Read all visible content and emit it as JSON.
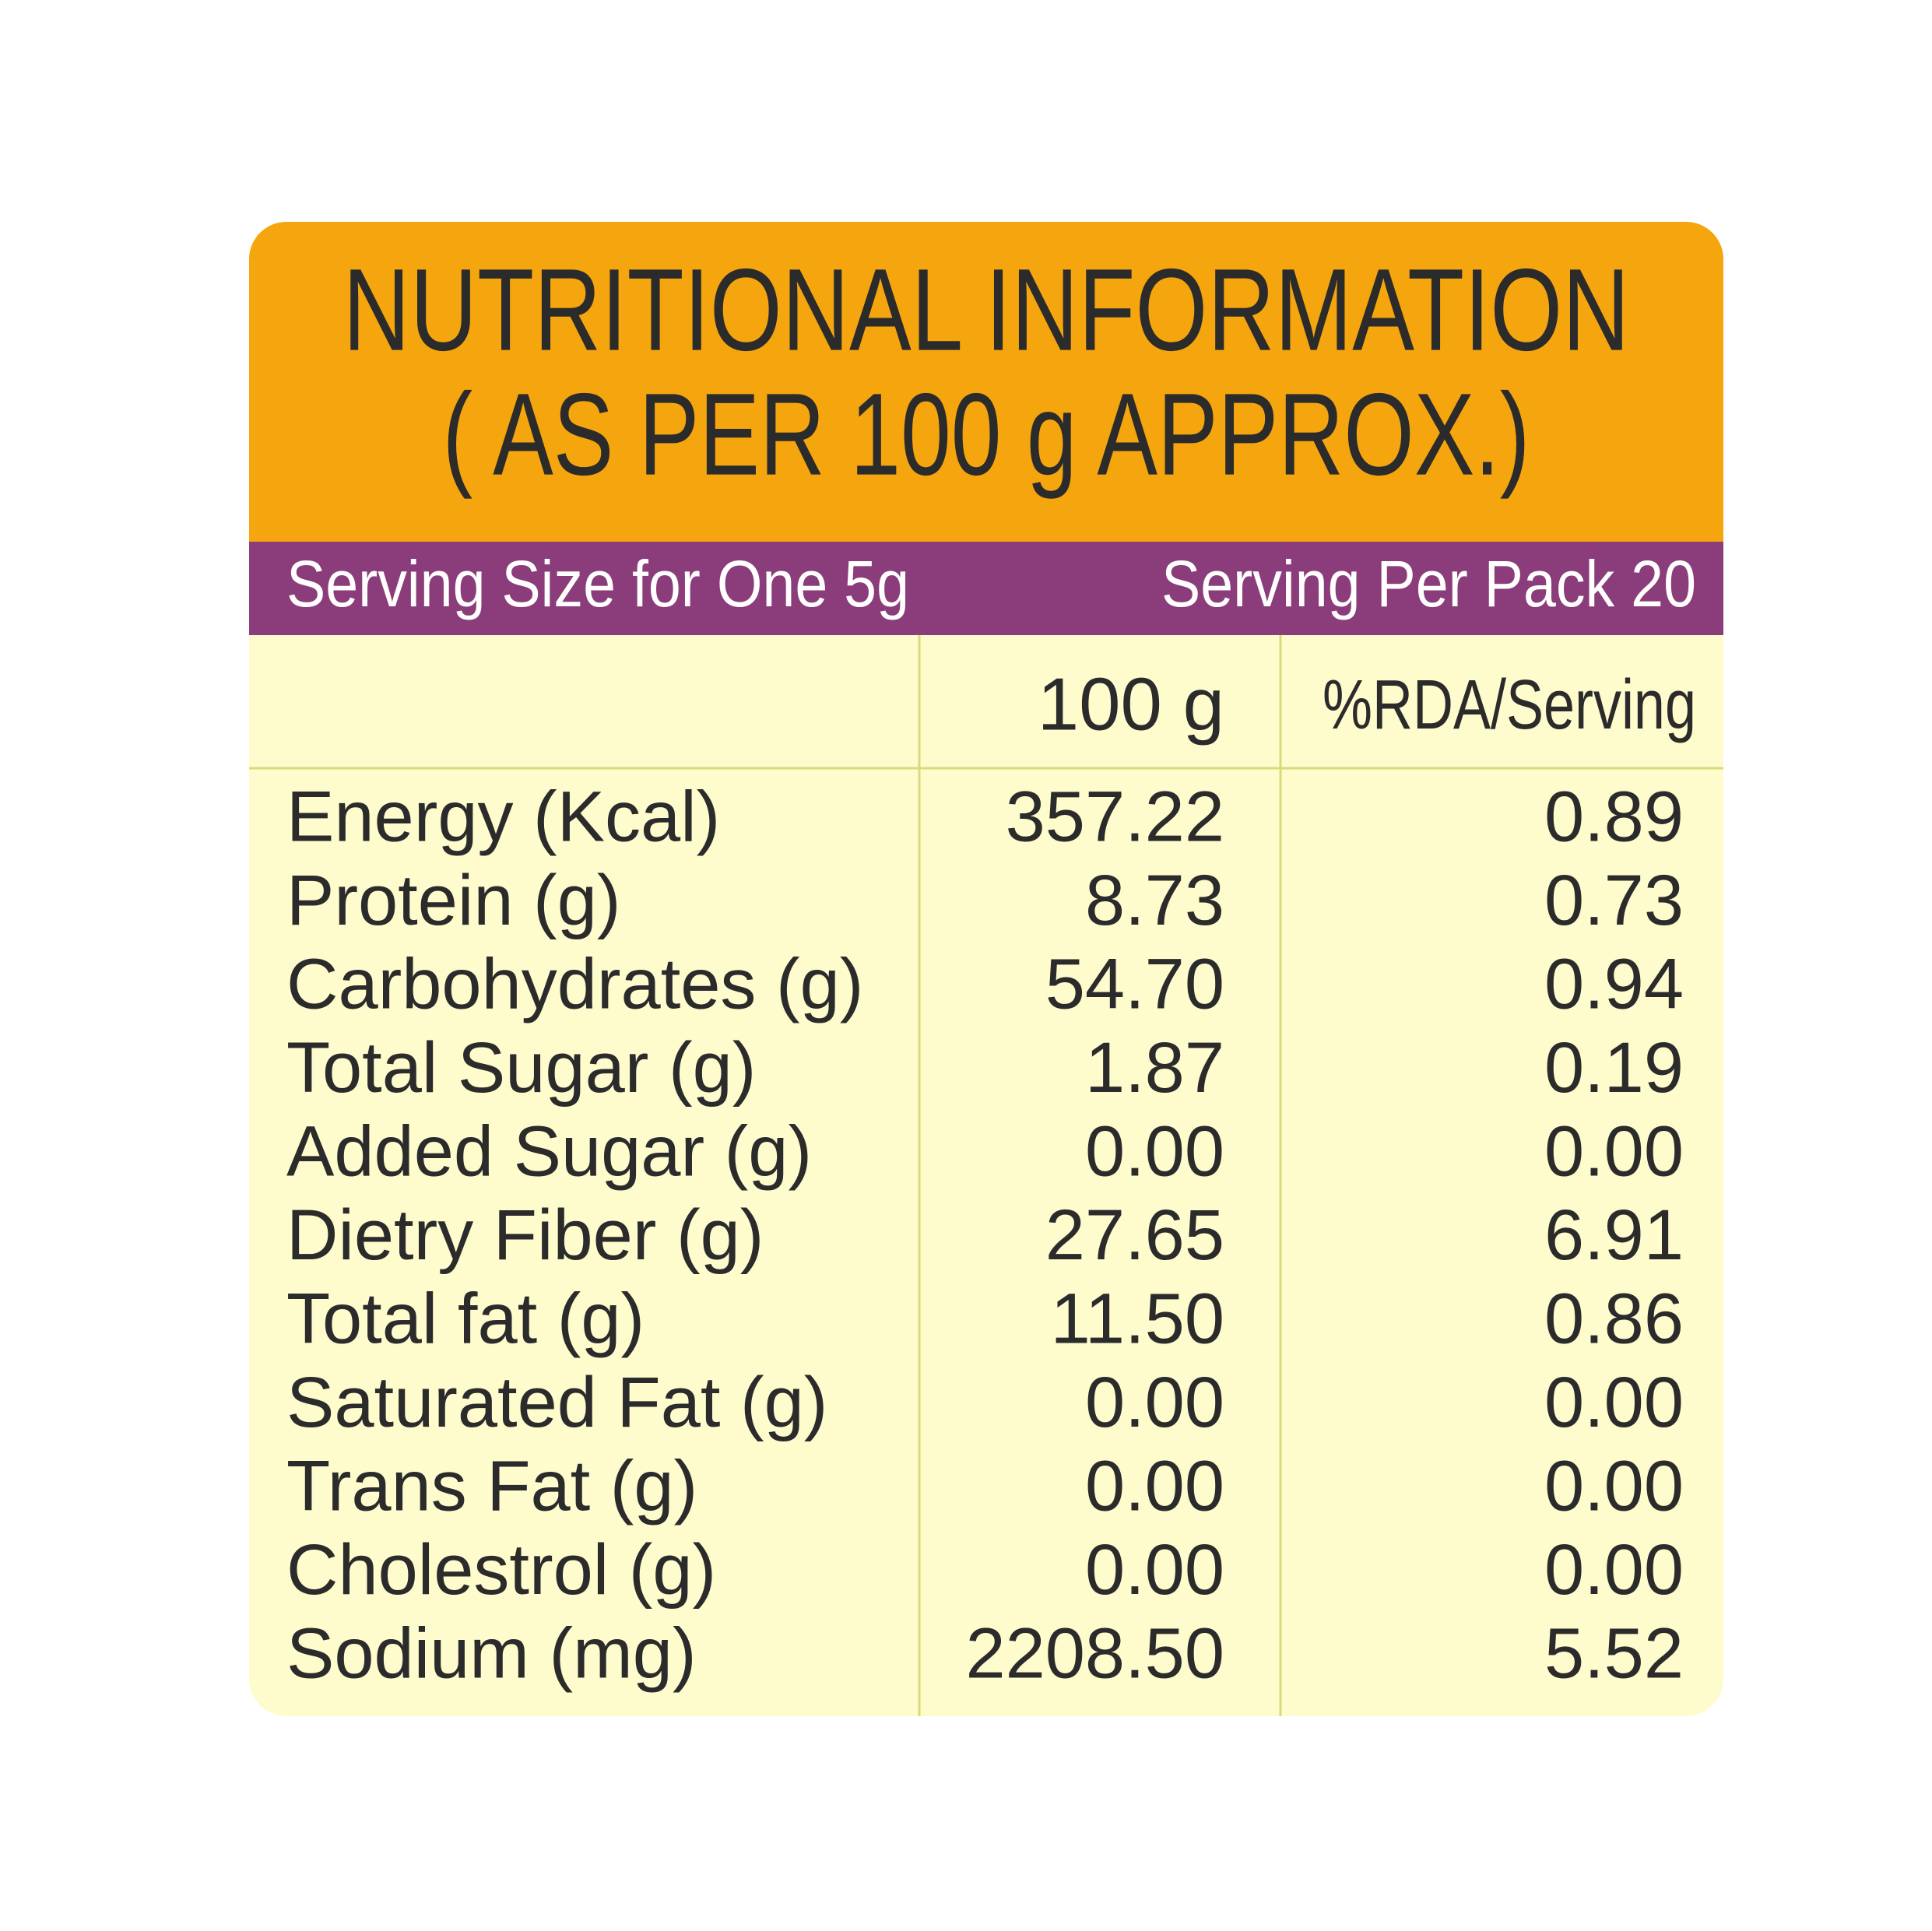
{
  "header": {
    "title": [
      "NUTRITIONAL INFORMATION",
      "( AS PER 100 g APPROX.)"
    ]
  },
  "serving": {
    "size": "Serving Size for One 5g",
    "per_pack": "Serving Per Pack 20"
  },
  "table": {
    "columns": [
      "100 g",
      "%RDA/Serving"
    ],
    "rows": [
      [
        "Energy (Kcal)",
        "357.22",
        "0.89"
      ],
      [
        "Protein (g)",
        "8.73",
        "0.73"
      ],
      [
        "Carbohydrates (g)",
        "54.70",
        "0.94"
      ],
      [
        "Total Sugar (g)",
        "1.87",
        "0.19"
      ],
      [
        "Added Sugar (g)",
        "0.00",
        "0.00"
      ],
      [
        "Dietry Fiber (g)",
        "27.65",
        "6.91"
      ],
      [
        "Total fat (g)",
        "11.50",
        "0.86"
      ],
      [
        "Saturated Fat (g)",
        "0.00",
        "0.00"
      ],
      [
        "Trans Fat (g)",
        "0.00",
        "0.00"
      ],
      [
        "Cholestrol (g)",
        "0.00",
        "0.00"
      ],
      [
        "Sodium (mg)",
        "2208.50",
        "5.52"
      ]
    ]
  }
}
